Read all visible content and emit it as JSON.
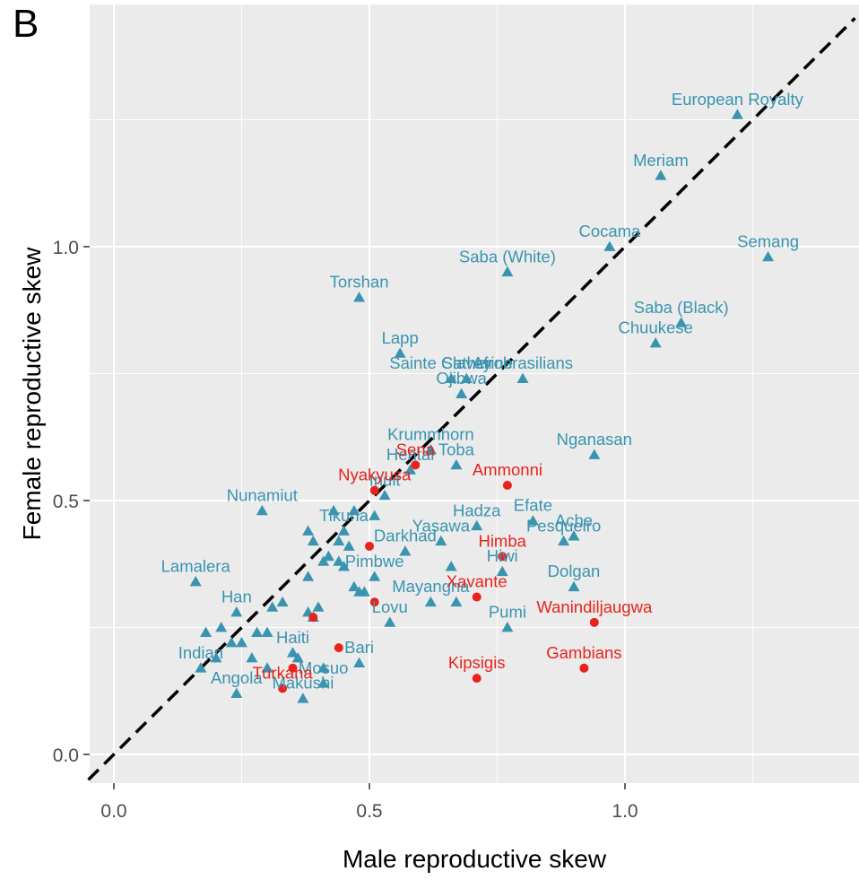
{
  "panel_label": "B",
  "colors": {
    "blue": "#3a94b0",
    "red": "#e8231c",
    "panel": "#ebebeb",
    "grid": "#ffffff",
    "ref_line": "#000000"
  },
  "chart_data": {
    "type": "scatter",
    "xlabel": "Male reproductive skew",
    "ylabel": "Female reproductive skew",
    "xlim": [
      -0.05,
      1.45
    ],
    "ylim": [
      -0.06,
      1.47
    ],
    "xticks": [
      0.0,
      0.5,
      1.0
    ],
    "yticks": [
      0.0,
      0.5,
      1.0
    ],
    "xtick_labels": [
      "0.0",
      "0.5",
      "1.0"
    ],
    "ytick_labels": [
      "0.0",
      "0.5",
      "1.0"
    ],
    "grid": true,
    "reference_line": "y = x (dashed)",
    "groups": [
      {
        "marker": "triangle",
        "color": "blue",
        "points": [
          {
            "x": 1.22,
            "y": 1.26,
            "label": "European Royalty"
          },
          {
            "x": 1.07,
            "y": 1.14,
            "label": "Meriam"
          },
          {
            "x": 1.28,
            "y": 0.98,
            "label": "Semang"
          },
          {
            "x": 0.97,
            "y": 1.0,
            "label": "Cocama"
          },
          {
            "x": 0.77,
            "y": 0.95,
            "label": "Saba (White)"
          },
          {
            "x": 0.48,
            "y": 0.9,
            "label": "Torshan"
          },
          {
            "x": 1.11,
            "y": 0.85,
            "label": "Saba (Black)"
          },
          {
            "x": 1.06,
            "y": 0.81,
            "label": "Chuukese"
          },
          {
            "x": 0.56,
            "y": 0.79,
            "label": "Lapp"
          },
          {
            "x": 0.66,
            "y": 0.74,
            "label": "Sainte Catherine"
          },
          {
            "x": 0.69,
            "y": 0.74,
            "label": "Slavey"
          },
          {
            "x": 0.8,
            "y": 0.74,
            "label": "Afrobrasilians"
          },
          {
            "x": 0.68,
            "y": 0.71,
            "label": "Ojibwa"
          },
          {
            "x": 0.62,
            "y": 0.6,
            "label": "Krummhorn"
          },
          {
            "x": 0.94,
            "y": 0.59,
            "label": "Nganasan"
          },
          {
            "x": 0.58,
            "y": 0.56,
            "label": "Hentai"
          },
          {
            "x": 0.67,
            "y": 0.57,
            "label": "Toba"
          },
          {
            "x": 0.53,
            "y": 0.51,
            "label": "Inuit"
          },
          {
            "x": 0.29,
            "y": 0.48,
            "label": "Nunamiut"
          },
          {
            "x": 0.71,
            "y": 0.45,
            "label": "Hadza"
          },
          {
            "x": 0.82,
            "y": 0.46,
            "label": "Efate"
          },
          {
            "x": 0.64,
            "y": 0.42,
            "label": "Yasawa"
          },
          {
            "x": 0.9,
            "y": 0.43,
            "label": "Ache"
          },
          {
            "x": 0.88,
            "y": 0.42,
            "label": "Pesqueiro"
          },
          {
            "x": 0.45,
            "y": 0.44,
            "label": "Tikuna"
          },
          {
            "x": 0.57,
            "y": 0.4,
            "label": "Darkhad"
          },
          {
            "x": 0.76,
            "y": 0.36,
            "label": "Hiwi"
          },
          {
            "x": 0.16,
            "y": 0.34,
            "label": "Lamalera"
          },
          {
            "x": 0.51,
            "y": 0.35,
            "label": "Pimbwe"
          },
          {
            "x": 0.9,
            "y": 0.33,
            "label": "Dolgan"
          },
          {
            "x": 0.24,
            "y": 0.28,
            "label": "Han"
          },
          {
            "x": 0.54,
            "y": 0.26,
            "label": "Lovu"
          },
          {
            "x": 0.62,
            "y": 0.3,
            "label": "Mayangna"
          },
          {
            "x": 0.77,
            "y": 0.25,
            "label": "Pumi"
          },
          {
            "x": 0.35,
            "y": 0.2,
            "label": "Haiti"
          },
          {
            "x": 0.48,
            "y": 0.18,
            "label": "Bari"
          },
          {
            "x": 0.17,
            "y": 0.17,
            "label": "Indian"
          },
          {
            "x": 0.41,
            "y": 0.14,
            "label": "Mosuo"
          },
          {
            "x": 0.24,
            "y": 0.12,
            "label": "Angola"
          },
          {
            "x": 0.37,
            "y": 0.11,
            "label": "Makushi"
          },
          {
            "x": 0.43,
            "y": 0.48,
            "label": ""
          },
          {
            "x": 0.47,
            "y": 0.48,
            "label": ""
          },
          {
            "x": 0.51,
            "y": 0.47,
            "label": ""
          },
          {
            "x": 0.38,
            "y": 0.44,
            "label": ""
          },
          {
            "x": 0.44,
            "y": 0.42,
            "label": ""
          },
          {
            "x": 0.39,
            "y": 0.42,
            "label": ""
          },
          {
            "x": 0.46,
            "y": 0.41,
            "label": ""
          },
          {
            "x": 0.42,
            "y": 0.39,
            "label": ""
          },
          {
            "x": 0.41,
            "y": 0.38,
            "label": ""
          },
          {
            "x": 0.44,
            "y": 0.38,
            "label": ""
          },
          {
            "x": 0.45,
            "y": 0.37,
            "label": ""
          },
          {
            "x": 0.38,
            "y": 0.35,
            "label": ""
          },
          {
            "x": 0.66,
            "y": 0.37,
            "label": ""
          },
          {
            "x": 0.47,
            "y": 0.33,
            "label": ""
          },
          {
            "x": 0.48,
            "y": 0.32,
            "label": ""
          },
          {
            "x": 0.49,
            "y": 0.32,
            "label": ""
          },
          {
            "x": 0.67,
            "y": 0.3,
            "label": ""
          },
          {
            "x": 0.33,
            "y": 0.3,
            "label": ""
          },
          {
            "x": 0.31,
            "y": 0.29,
            "label": ""
          },
          {
            "x": 0.38,
            "y": 0.28,
            "label": ""
          },
          {
            "x": 0.4,
            "y": 0.29,
            "label": ""
          },
          {
            "x": 0.39,
            "y": 0.27,
            "label": ""
          },
          {
            "x": 0.21,
            "y": 0.25,
            "label": ""
          },
          {
            "x": 0.28,
            "y": 0.24,
            "label": ""
          },
          {
            "x": 0.3,
            "y": 0.24,
            "label": ""
          },
          {
            "x": 0.18,
            "y": 0.24,
            "label": ""
          },
          {
            "x": 0.23,
            "y": 0.22,
            "label": ""
          },
          {
            "x": 0.25,
            "y": 0.22,
            "label": ""
          },
          {
            "x": 0.2,
            "y": 0.19,
            "label": ""
          },
          {
            "x": 0.27,
            "y": 0.19,
            "label": ""
          },
          {
            "x": 0.36,
            "y": 0.19,
            "label": ""
          },
          {
            "x": 0.3,
            "y": 0.17,
            "label": ""
          },
          {
            "x": 0.41,
            "y": 0.17,
            "label": ""
          }
        ]
      },
      {
        "marker": "circle",
        "color": "red",
        "points": [
          {
            "x": 0.59,
            "y": 0.57,
            "label": "Sena"
          },
          {
            "x": 0.51,
            "y": 0.52,
            "label": "Nyakyusa"
          },
          {
            "x": 0.77,
            "y": 0.53,
            "label": "Ammonni"
          },
          {
            "x": 0.76,
            "y": 0.39,
            "label": "Himba"
          },
          {
            "x": 0.5,
            "y": 0.41,
            "label": ""
          },
          {
            "x": 0.71,
            "y": 0.31,
            "label": "Xavante"
          },
          {
            "x": 0.51,
            "y": 0.3,
            "label": ""
          },
          {
            "x": 0.94,
            "y": 0.26,
            "label": "Wanindiljaugwa"
          },
          {
            "x": 0.39,
            "y": 0.27,
            "label": ""
          },
          {
            "x": 0.44,
            "y": 0.21,
            "label": ""
          },
          {
            "x": 0.92,
            "y": 0.17,
            "label": "Gambians"
          },
          {
            "x": 0.71,
            "y": 0.15,
            "label": "Kipsigis"
          },
          {
            "x": 0.35,
            "y": 0.17,
            "label": ""
          },
          {
            "x": 0.33,
            "y": 0.13,
            "label": "Turkana"
          }
        ]
      }
    ]
  }
}
